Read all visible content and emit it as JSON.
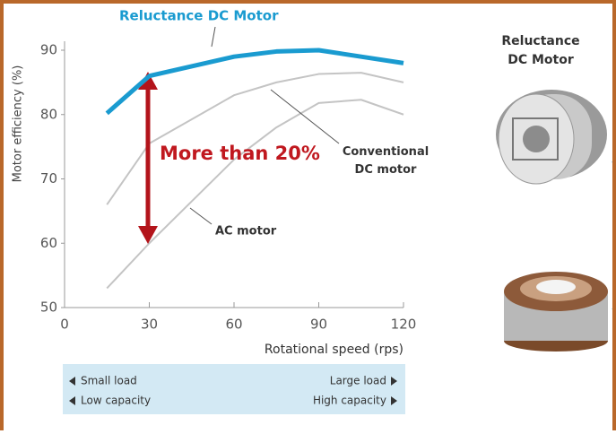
{
  "chart_data": {
    "type": "line",
    "title": "Reluctance DC Motor",
    "x_label": "Rotational speed (rps)",
    "y_label": "Motor efficiency (%)",
    "x": [
      15,
      30,
      60,
      75,
      90,
      105,
      120
    ],
    "series": [
      {
        "name": "Reluctance DC Motor",
        "color": "#1a9bd0",
        "values": [
          80.2,
          86,
          89,
          89.8,
          90,
          89,
          88
        ]
      },
      {
        "name": "Conventional DC motor",
        "color": "#c4c4c4",
        "values": [
          66,
          75.5,
          83,
          85,
          86.3,
          86.5,
          85
        ]
      },
      {
        "name": "AC motor",
        "color": "#c4c4c4",
        "values": [
          53,
          60,
          73,
          78,
          81.8,
          82.3,
          80
        ]
      }
    ],
    "xlim": [
      0,
      120
    ],
    "ylim": [
      50,
      90
    ],
    "xticks": [
      0,
      30,
      60,
      90,
      120
    ],
    "yticks": [
      50,
      60,
      70,
      80,
      90
    ],
    "annotation": "More than 20%",
    "load_scale": {
      "left": [
        "Small load",
        "Low capacity"
      ],
      "right": [
        "Large load",
        "High capacity"
      ]
    }
  },
  "panel": {
    "heading": "Reluctance DC Motor"
  }
}
